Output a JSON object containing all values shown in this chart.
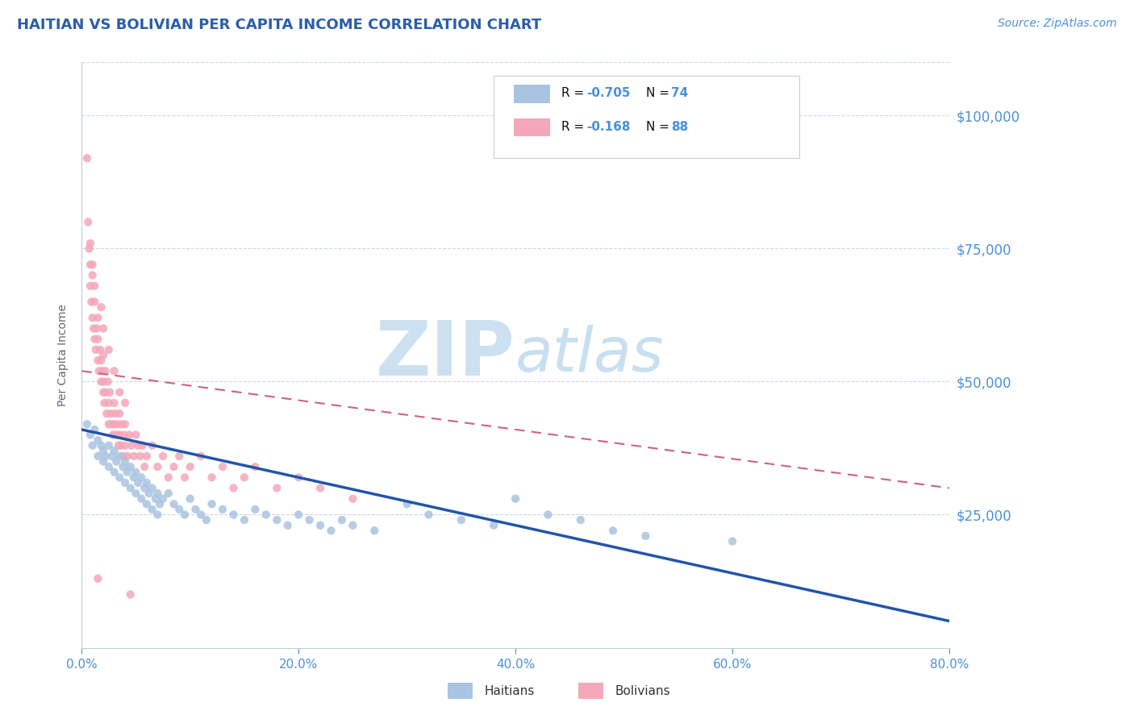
{
  "title": "HAITIAN VS BOLIVIAN PER CAPITA INCOME CORRELATION CHART",
  "source": "Source: ZipAtlas.com",
  "ylabel": "Per Capita Income",
  "xlim": [
    0.0,
    0.8
  ],
  "ylim": [
    0,
    110000
  ],
  "yticks": [
    0,
    25000,
    50000,
    75000,
    100000
  ],
  "ytick_labels": [
    "",
    "$25,000",
    "$50,000",
    "$75,000",
    "$100,000"
  ],
  "xticks": [
    0.0,
    0.2,
    0.4,
    0.6,
    0.8
  ],
  "xtick_labels": [
    "0.0%",
    "20.0%",
    "40.0%",
    "60.0%",
    "80.0%"
  ],
  "haitian_color": "#a8c4e0",
  "bolivian_color": "#f4a7b9",
  "haitian_line_color": "#2255aa",
  "bolivian_line_color": "#d06080",
  "title_color": "#2b5ea7",
  "tick_color": "#4a90d9",
  "watermark_zip_color": "#cce0f0",
  "watermark_atlas_color": "#c8dff0",
  "grid_color": "#c8d8e8",
  "background_color": "#ffffff",
  "haitian_scatter_x": [
    0.005,
    0.008,
    0.01,
    0.012,
    0.015,
    0.015,
    0.018,
    0.02,
    0.02,
    0.022,
    0.025,
    0.025,
    0.028,
    0.03,
    0.03,
    0.032,
    0.035,
    0.035,
    0.038,
    0.04,
    0.04,
    0.042,
    0.045,
    0.045,
    0.048,
    0.05,
    0.05,
    0.052,
    0.055,
    0.055,
    0.058,
    0.06,
    0.06,
    0.062,
    0.065,
    0.065,
    0.068,
    0.07,
    0.07,
    0.072,
    0.075,
    0.08,
    0.085,
    0.09,
    0.095,
    0.1,
    0.105,
    0.11,
    0.115,
    0.12,
    0.13,
    0.14,
    0.15,
    0.16,
    0.17,
    0.18,
    0.19,
    0.2,
    0.21,
    0.22,
    0.23,
    0.24,
    0.25,
    0.27,
    0.3,
    0.32,
    0.35,
    0.38,
    0.4,
    0.43,
    0.46,
    0.49,
    0.52,
    0.6
  ],
  "haitian_scatter_y": [
    42000,
    40000,
    38000,
    41000,
    39000,
    36000,
    38000,
    37000,
    35000,
    36000,
    38000,
    34000,
    36000,
    37000,
    33000,
    35000,
    36000,
    32000,
    34000,
    35000,
    31000,
    33000,
    34000,
    30000,
    32000,
    33000,
    29000,
    31000,
    32000,
    28000,
    30000,
    31000,
    27000,
    29000,
    30000,
    26000,
    28000,
    29000,
    25000,
    27000,
    28000,
    29000,
    27000,
    26000,
    25000,
    28000,
    26000,
    25000,
    24000,
    27000,
    26000,
    25000,
    24000,
    26000,
    25000,
    24000,
    23000,
    25000,
    24000,
    23000,
    22000,
    24000,
    23000,
    22000,
    27000,
    25000,
    24000,
    23000,
    28000,
    25000,
    24000,
    22000,
    21000,
    20000
  ],
  "bolivian_scatter_x": [
    0.005,
    0.006,
    0.007,
    0.008,
    0.008,
    0.009,
    0.01,
    0.01,
    0.011,
    0.012,
    0.012,
    0.013,
    0.014,
    0.015,
    0.015,
    0.015,
    0.016,
    0.017,
    0.018,
    0.018,
    0.019,
    0.02,
    0.02,
    0.02,
    0.021,
    0.022,
    0.022,
    0.023,
    0.024,
    0.025,
    0.025,
    0.026,
    0.027,
    0.028,
    0.029,
    0.03,
    0.03,
    0.031,
    0.032,
    0.033,
    0.034,
    0.035,
    0.035,
    0.036,
    0.037,
    0.038,
    0.039,
    0.04,
    0.04,
    0.042,
    0.044,
    0.046,
    0.048,
    0.05,
    0.052,
    0.054,
    0.056,
    0.058,
    0.06,
    0.065,
    0.07,
    0.075,
    0.08,
    0.085,
    0.09,
    0.095,
    0.1,
    0.11,
    0.12,
    0.13,
    0.14,
    0.15,
    0.16,
    0.18,
    0.2,
    0.22,
    0.25,
    0.008,
    0.01,
    0.012,
    0.015,
    0.018,
    0.02,
    0.025,
    0.03,
    0.035,
    0.04,
    0.045
  ],
  "bolivian_scatter_y": [
    92000,
    80000,
    75000,
    72000,
    68000,
    65000,
    62000,
    70000,
    60000,
    58000,
    65000,
    56000,
    60000,
    58000,
    54000,
    62000,
    52000,
    56000,
    54000,
    50000,
    52000,
    50000,
    48000,
    55000,
    46000,
    52000,
    48000,
    44000,
    50000,
    46000,
    42000,
    48000,
    44000,
    42000,
    40000,
    46000,
    42000,
    44000,
    40000,
    42000,
    38000,
    44000,
    40000,
    38000,
    42000,
    36000,
    40000,
    38000,
    42000,
    36000,
    40000,
    38000,
    36000,
    40000,
    38000,
    36000,
    38000,
    34000,
    36000,
    38000,
    34000,
    36000,
    32000,
    34000,
    36000,
    32000,
    34000,
    36000,
    32000,
    34000,
    30000,
    32000,
    34000,
    30000,
    32000,
    30000,
    28000,
    76000,
    72000,
    68000,
    13000,
    64000,
    60000,
    56000,
    52000,
    48000,
    46000,
    10000
  ],
  "haitian_line_x0": 0.0,
  "haitian_line_x1": 0.8,
  "haitian_line_y0": 41000,
  "haitian_line_y1": 5000,
  "bolivian_line_x0": 0.0,
  "bolivian_line_x1": 0.8,
  "bolivian_line_y0": 52000,
  "bolivian_line_y1": 30000
}
